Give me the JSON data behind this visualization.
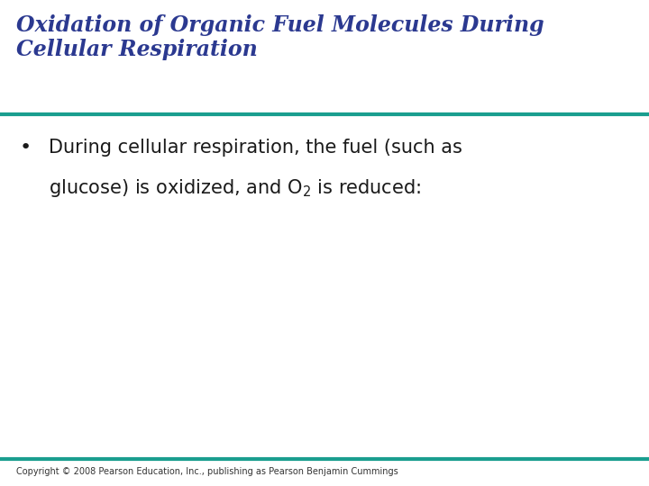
{
  "title_line1": "Oxidation of Organic Fuel Molecules During",
  "title_line2": "Cellular Respiration",
  "title_color": "#2B3990",
  "title_fontsize": 17,
  "title_style": "italic",
  "title_weight": "bold",
  "divider_color": "#1A9E8F",
  "divider_linewidth": 3.0,
  "bullet_text_line1": "During cellular respiration, the fuel (such as",
  "bullet_text_line2_pre": "glucose) is oxidized, and O",
  "bullet_text_subscript": "2",
  "bullet_text_line2_post": " is reduced:",
  "bullet_color": "#1a1a1a",
  "bullet_fontsize": 15,
  "copyright_text": "Copyright © 2008 Pearson Education, Inc., publishing as Pearson Benjamin Cummings",
  "copyright_fontsize": 7,
  "copyright_color": "#333333",
  "background_color": "#FFFFFF"
}
